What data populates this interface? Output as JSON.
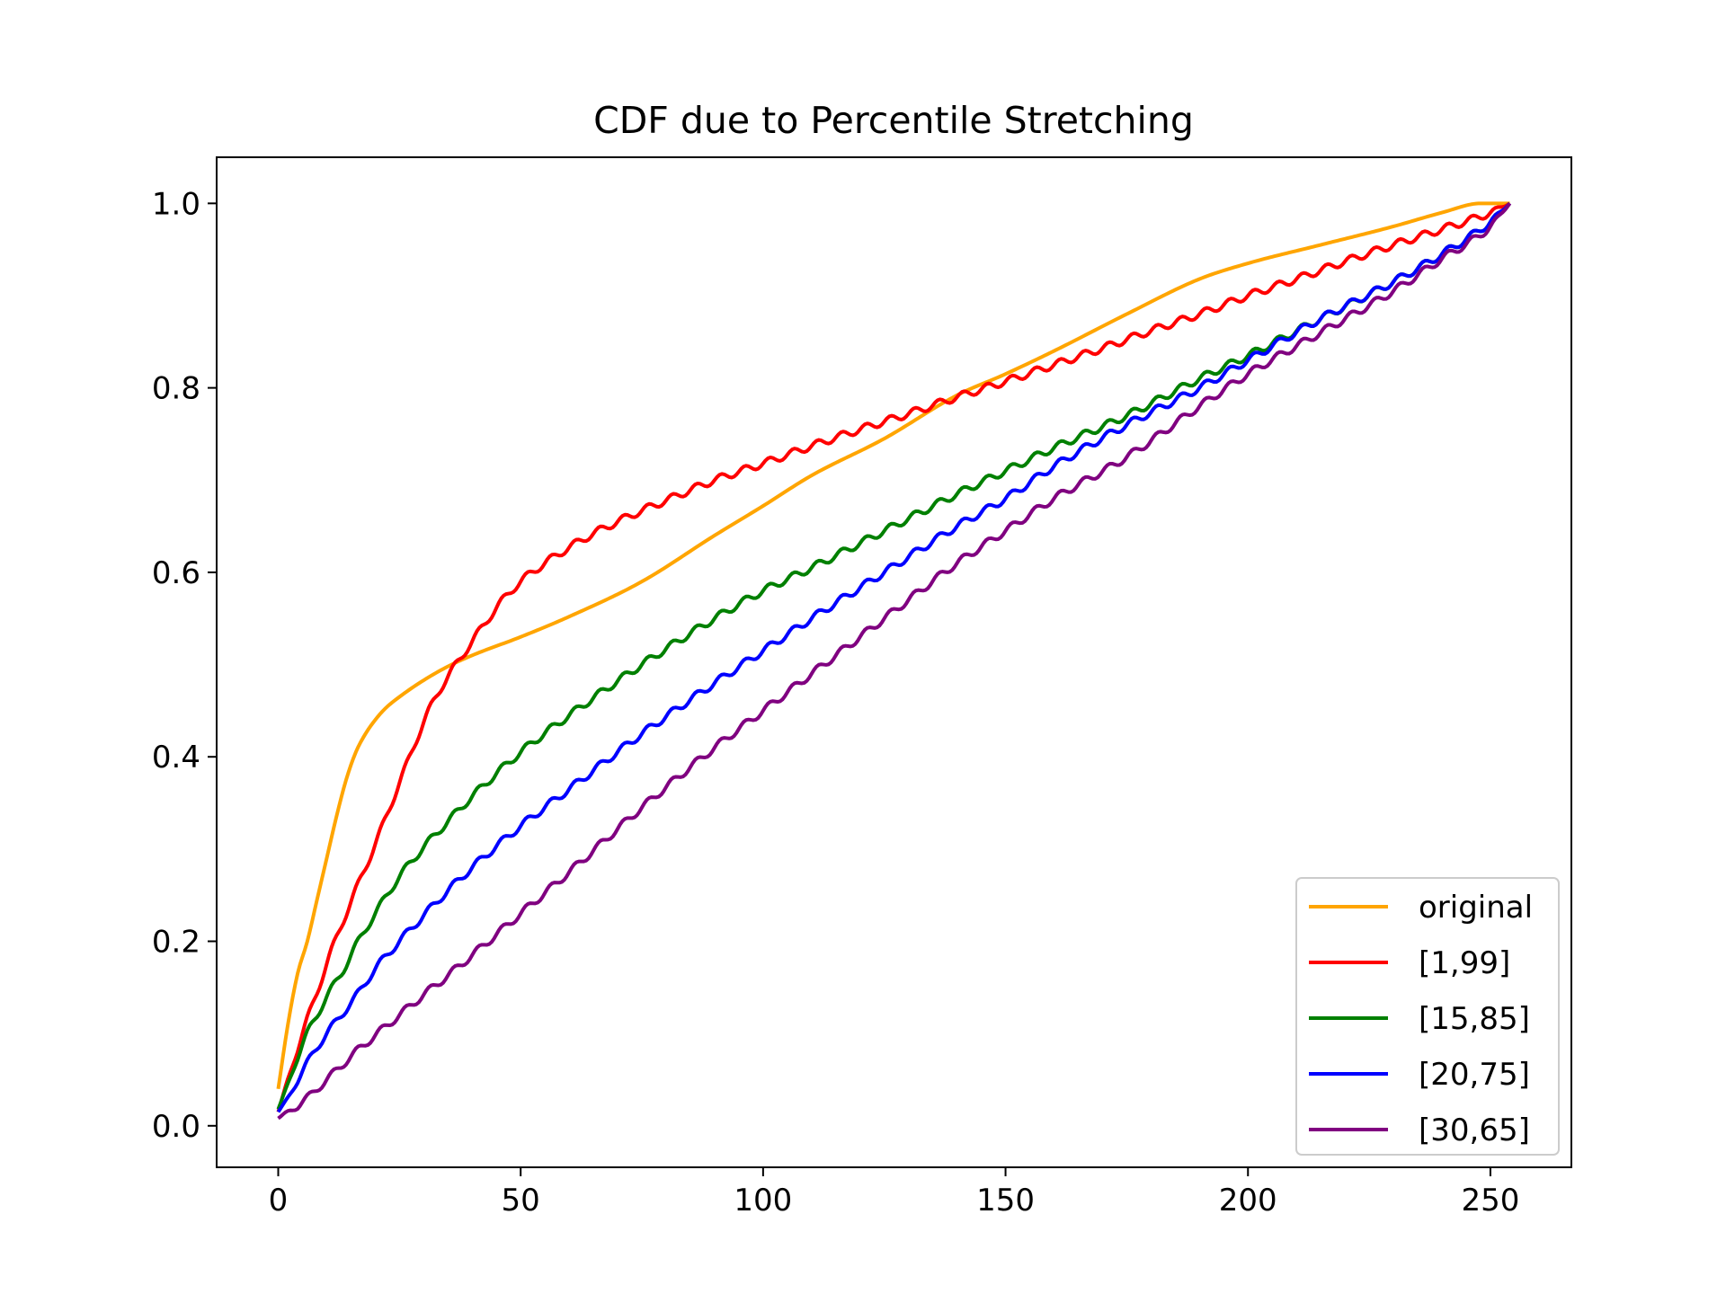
{
  "chart_data": {
    "type": "line",
    "title": "CDF due to Percentile Stretching",
    "xlabel": "",
    "ylabel": "",
    "xlim": [
      -12.7,
      266.7
    ],
    "ylim": [
      -0.045,
      1.05
    ],
    "xticks": [
      0,
      50,
      100,
      150,
      200,
      250
    ],
    "yticks": [
      0.0,
      0.2,
      0.4,
      0.6,
      0.8,
      1.0
    ],
    "xtick_labels": [
      "0",
      "50",
      "100",
      "150",
      "200",
      "250"
    ],
    "ytick_labels": [
      "0.0",
      "0.2",
      "0.4",
      "0.6",
      "0.8",
      "1.0"
    ],
    "grid": false,
    "legend_position": "lower-right",
    "series": [
      {
        "name": "original",
        "color": "#FFA500",
        "x": [
          0,
          2,
          4,
          6,
          8,
          10,
          12,
          14,
          16,
          18,
          20,
          22,
          25,
          30,
          35,
          40,
          50,
          60,
          75,
          90,
          100,
          110,
          125,
          140,
          150,
          160,
          175,
          190,
          200,
          215,
          230,
          240,
          248,
          254
        ],
        "y": [
          0.04,
          0.11,
          0.165,
          0.2,
          0.245,
          0.29,
          0.335,
          0.375,
          0.405,
          0.425,
          0.44,
          0.452,
          0.465,
          0.483,
          0.498,
          0.51,
          0.53,
          0.552,
          0.59,
          0.64,
          0.672,
          0.705,
          0.745,
          0.792,
          0.815,
          0.84,
          0.88,
          0.918,
          0.935,
          0.955,
          0.975,
          0.99,
          1.0,
          1.0
        ]
      },
      {
        "name": "[1,99]",
        "color": "#FF0000",
        "x": [
          0,
          2,
          5,
          8,
          11,
          14,
          17,
          20,
          23,
          26,
          29,
          32,
          35,
          38,
          42,
          46,
          50,
          55,
          60,
          65,
          70,
          75,
          80,
          90,
          100,
          110,
          120,
          130,
          140,
          150,
          160,
          170,
          180,
          190,
          200,
          210,
          220,
          230,
          240,
          250,
          254
        ],
        "y": [
          0.015,
          0.05,
          0.1,
          0.145,
          0.19,
          0.23,
          0.268,
          0.305,
          0.345,
          0.385,
          0.425,
          0.46,
          0.487,
          0.51,
          0.54,
          0.568,
          0.59,
          0.61,
          0.627,
          0.642,
          0.655,
          0.667,
          0.678,
          0.7,
          0.718,
          0.737,
          0.755,
          0.772,
          0.79,
          0.807,
          0.825,
          0.843,
          0.862,
          0.88,
          0.9,
          0.918,
          0.937,
          0.955,
          0.972,
          0.99,
          1.0
        ]
      },
      {
        "name": "[15,85]",
        "color": "#008000",
        "x": [
          0,
          2,
          4,
          6,
          8,
          10,
          13,
          16,
          20,
          25,
          30,
          35,
          40,
          50,
          60,
          75,
          90,
          100,
          110,
          125,
          140,
          150,
          160,
          175,
          190,
          200,
          215,
          230,
          240,
          250,
          254
        ],
        "y": [
          0.018,
          0.045,
          0.075,
          0.1,
          0.12,
          0.14,
          0.165,
          0.195,
          0.23,
          0.27,
          0.302,
          0.33,
          0.357,
          0.405,
          0.445,
          0.5,
          0.55,
          0.58,
          0.605,
          0.645,
          0.685,
          0.71,
          0.735,
          0.77,
          0.81,
          0.835,
          0.875,
          0.915,
          0.945,
          0.98,
          1.0
        ]
      },
      {
        "name": "[20,75]",
        "color": "#0000FF",
        "x": [
          0,
          2,
          4,
          6,
          8,
          10,
          13,
          16,
          20,
          25,
          30,
          35,
          40,
          50,
          60,
          75,
          90,
          100,
          110,
          125,
          140,
          150,
          160,
          175,
          190,
          200,
          215,
          230,
          240,
          250,
          254
        ],
        "y": [
          0.015,
          0.03,
          0.05,
          0.068,
          0.085,
          0.1,
          0.12,
          0.14,
          0.17,
          0.2,
          0.228,
          0.255,
          0.28,
          0.325,
          0.365,
          0.425,
          0.48,
          0.515,
          0.55,
          0.6,
          0.65,
          0.68,
          0.715,
          0.76,
          0.8,
          0.83,
          0.875,
          0.915,
          0.945,
          0.98,
          1.0
        ]
      },
      {
        "name": "[30,65]",
        "color": "#800080",
        "x": [
          0,
          2,
          4,
          6,
          8,
          10,
          13,
          16,
          20,
          25,
          30,
          35,
          40,
          50,
          60,
          75,
          90,
          100,
          110,
          125,
          140,
          150,
          160,
          175,
          190,
          200,
          215,
          230,
          240,
          250,
          254
        ],
        "y": [
          0.008,
          0.015,
          0.022,
          0.03,
          0.04,
          0.05,
          0.065,
          0.08,
          0.098,
          0.12,
          0.142,
          0.163,
          0.185,
          0.23,
          0.275,
          0.345,
          0.41,
          0.45,
          0.49,
          0.55,
          0.61,
          0.645,
          0.68,
          0.725,
          0.78,
          0.815,
          0.86,
          0.905,
          0.94,
          0.975,
          1.0
        ]
      }
    ]
  }
}
